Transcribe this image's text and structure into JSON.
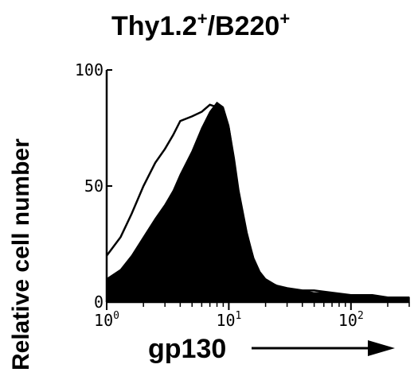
{
  "chart_data": {
    "type": "area",
    "title": {
      "base": "Thy1.2",
      "sup1": "+",
      "mid": "/B220",
      "sup2": "+"
    },
    "xlabel": "gp130",
    "ylabel": "Relative cell number",
    "x_scale": "log",
    "xlim": [
      1,
      300
    ],
    "ylim": [
      0,
      100
    ],
    "grid": false,
    "legend": "none",
    "y_ticks": [
      {
        "value": 0,
        "label": "0"
      },
      {
        "value": 50,
        "label": "50"
      },
      {
        "value": 100,
        "label": "100"
      }
    ],
    "x_ticks": [
      {
        "value": 1,
        "base": "10",
        "exp": "0"
      },
      {
        "value": 10,
        "base": "10",
        "exp": "1"
      },
      {
        "value": 100,
        "base": "10",
        "exp": "2"
      }
    ],
    "series": [
      {
        "style": "outline",
        "color": "#000000",
        "x": [
          1,
          1.3,
          1.6,
          2,
          2.5,
          3,
          3.5,
          4,
          5,
          6,
          7,
          8,
          9,
          10,
          11,
          12,
          14,
          16,
          18,
          20,
          25,
          30,
          40,
          50,
          70,
          100,
          150,
          200,
          300
        ],
        "y": [
          20,
          28,
          38,
          50,
          60,
          66,
          72,
          78,
          80,
          82,
          85,
          84,
          82,
          75,
          62,
          48,
          30,
          18,
          12,
          9,
          7,
          6,
          5,
          5,
          4,
          3,
          3,
          2,
          2
        ]
      },
      {
        "style": "filled",
        "color": "#000000",
        "x": [
          1,
          1.3,
          1.6,
          2,
          2.5,
          3,
          3.5,
          4,
          5,
          6,
          7,
          8,
          9,
          10,
          11,
          12,
          14,
          16,
          18,
          20,
          25,
          30,
          40,
          50,
          70,
          100,
          150,
          200,
          300
        ],
        "y": [
          10,
          14,
          20,
          28,
          36,
          42,
          48,
          55,
          65,
          75,
          82,
          86,
          84,
          76,
          62,
          48,
          30,
          19,
          13,
          10,
          7,
          6,
          5,
          4,
          4,
          3,
          3,
          2,
          2
        ]
      }
    ],
    "arrow": "right"
  }
}
